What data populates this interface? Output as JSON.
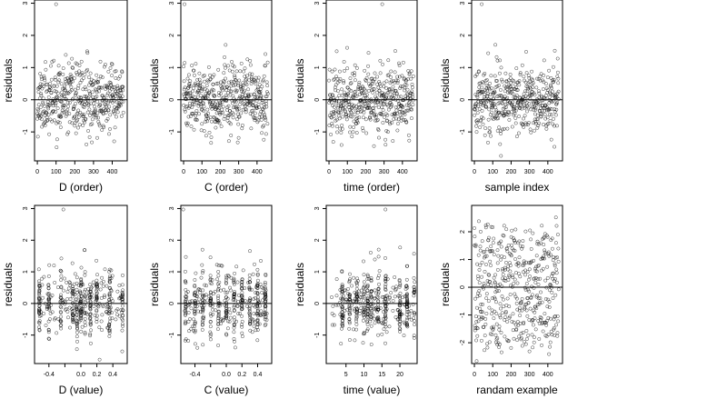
{
  "ylabel_text": "residuals",
  "chart_data": [
    {
      "type": "scatter",
      "xlabel": "D (order)",
      "ylabel": "residuals",
      "xlim": [
        -15,
        480
      ],
      "ylim": [
        -1.9,
        3.1
      ],
      "xticks": [
        0,
        100,
        200,
        300,
        400
      ],
      "yticks": [
        -1,
        0,
        1,
        2,
        3
      ],
      "hline": 0,
      "n": 460,
      "seed": 11,
      "xmode": "order",
      "ymode": "res",
      "outlier": [
        100,
        2.97
      ],
      "xtick_labels": [
        "0",
        "100",
        "200",
        "300",
        "400"
      ],
      "ytick_labels": [
        "-1",
        "0",
        "1",
        "2",
        "3"
      ]
    },
    {
      "type": "scatter",
      "xlabel": "C (order)",
      "ylabel": "residuals",
      "xlim": [
        -15,
        480
      ],
      "ylim": [
        -1.9,
        3.1
      ],
      "xticks": [
        0,
        100,
        200,
        300,
        400
      ],
      "yticks": [
        -1,
        0,
        1,
        2,
        3
      ],
      "hline": 0,
      "n": 460,
      "seed": 23,
      "xmode": "order",
      "ymode": "res",
      "outlier": [
        5,
        2.97
      ],
      "xtick_labels": [
        "0",
        "100",
        "200",
        "300",
        "400"
      ],
      "ytick_labels": [
        "-1",
        "0",
        "1",
        "2",
        "3"
      ]
    },
    {
      "type": "scatter",
      "xlabel": "time (order)",
      "ylabel": "residuals",
      "xlim": [
        -15,
        480
      ],
      "ylim": [
        -1.9,
        3.1
      ],
      "xticks": [
        0,
        100,
        200,
        300,
        400
      ],
      "yticks": [
        -1,
        0,
        1,
        2,
        3
      ],
      "hline": 0,
      "n": 460,
      "seed": 37,
      "xmode": "order",
      "ymode": "res",
      "outlier": [
        290,
        2.97
      ],
      "xtick_labels": [
        "0",
        "100",
        "200",
        "300",
        "400"
      ],
      "ytick_labels": [
        "-1",
        "0",
        "1",
        "2",
        "3"
      ]
    },
    {
      "type": "scatter",
      "xlabel": "sample index",
      "ylabel": "residuals",
      "xlim": [
        -15,
        480
      ],
      "ylim": [
        -1.9,
        3.1
      ],
      "xticks": [
        0,
        100,
        200,
        300,
        400
      ],
      "yticks": [
        -1,
        0,
        1,
        2,
        3
      ],
      "hline": 0,
      "n": 460,
      "seed": 41,
      "xmode": "order",
      "ymode": "res",
      "outlier": [
        40,
        2.97
      ],
      "xtick_labels": [
        "0",
        "100",
        "200",
        "300",
        "400"
      ],
      "ytick_labels": [
        "-1",
        "0",
        "1",
        "2",
        "3"
      ]
    },
    {
      "type": "scatter",
      "xlabel": "D (value)",
      "ylabel": "residuals",
      "xlim": [
        -0.58,
        0.58
      ],
      "ylim": [
        -1.9,
        3.1
      ],
      "xticks": [
        -0.4,
        -0.2,
        0,
        0.2,
        0.4
      ],
      "yticks": [
        -1,
        0,
        1,
        2,
        3
      ],
      "hline": 0,
      "n": 460,
      "seed": 53,
      "xmode": "uniform",
      "ymode": "res",
      "cols": [
        -0.52,
        -0.4,
        -0.25,
        -0.1,
        -0.05,
        0,
        0.05,
        0.12,
        0.2,
        0.36,
        0.52
      ],
      "xrange": [
        -0.53,
        0.53
      ],
      "outlier": [
        -0.22,
        2.97
      ],
      "xtick_labels": [
        "-0.4",
        "",
        "0.0",
        "0.2",
        "0.4"
      ],
      "ytick_labels": [
        "-1",
        "0",
        "1",
        "2",
        "3"
      ]
    },
    {
      "type": "scatter",
      "xlabel": "C (value)",
      "ylabel": "residuals",
      "xlim": [
        -0.58,
        0.58
      ],
      "ylim": [
        -1.9,
        3.1
      ],
      "xticks": [
        -0.4,
        -0.2,
        0,
        0.2,
        0.4
      ],
      "yticks": [
        -1,
        0,
        1,
        2,
        3
      ],
      "hline": 0,
      "n": 460,
      "seed": 67,
      "xmode": "uniform",
      "ymode": "res",
      "cols": [
        -0.52,
        -0.4,
        -0.3,
        -0.2,
        -0.1,
        0,
        0.1,
        0.2,
        0.3,
        0.4,
        0.5
      ],
      "xrange": [
        -0.53,
        0.53
      ],
      "outlier": [
        -0.55,
        2.97
      ],
      "xtick_labels": [
        "-0.4",
        "",
        "0.0",
        "0.2",
        "0.4"
      ],
      "ytick_labels": [
        "-1",
        "0",
        "1",
        "2",
        "3"
      ]
    },
    {
      "type": "scatter",
      "xlabel": "time (value)",
      "ylabel": "residuals",
      "xlim": [
        -0.5,
        24.8
      ],
      "ylim": [
        -1.9,
        3.1
      ],
      "xticks": [
        5,
        10,
        15,
        20
      ],
      "yticks": [
        -1,
        0,
        1,
        2,
        3
      ],
      "hline": 0,
      "n": 460,
      "seed": 71,
      "xmode": "uniform",
      "ymode": "res",
      "cols": [
        4,
        6,
        8,
        10,
        11,
        12,
        14,
        16,
        20,
        22,
        24
      ],
      "xrange": [
        1,
        24
      ],
      "outlier": [
        16,
        2.97
      ],
      "xtick_labels": [
        "5",
        "10",
        "15",
        "20"
      ],
      "ytick_labels": [
        "-1",
        "0",
        "1",
        "2",
        "3"
      ]
    },
    {
      "type": "scatter",
      "xlabel": "randam example",
      "ylabel": "residuals",
      "xlim": [
        -15,
        480
      ],
      "ylim": [
        -2.75,
        2.95
      ],
      "xticks": [
        0,
        100,
        200,
        300,
        400
      ],
      "yticks": [
        -2,
        -1,
        0,
        1,
        2
      ],
      "hline": 0,
      "n": 460,
      "seed": 89,
      "xmode": "order",
      "ymode": "wide",
      "xtick_labels": [
        "0",
        "100",
        "200",
        "300",
        "400"
      ],
      "ytick_labels": [
        "-2",
        "-1",
        "0",
        "1",
        "2"
      ]
    }
  ]
}
